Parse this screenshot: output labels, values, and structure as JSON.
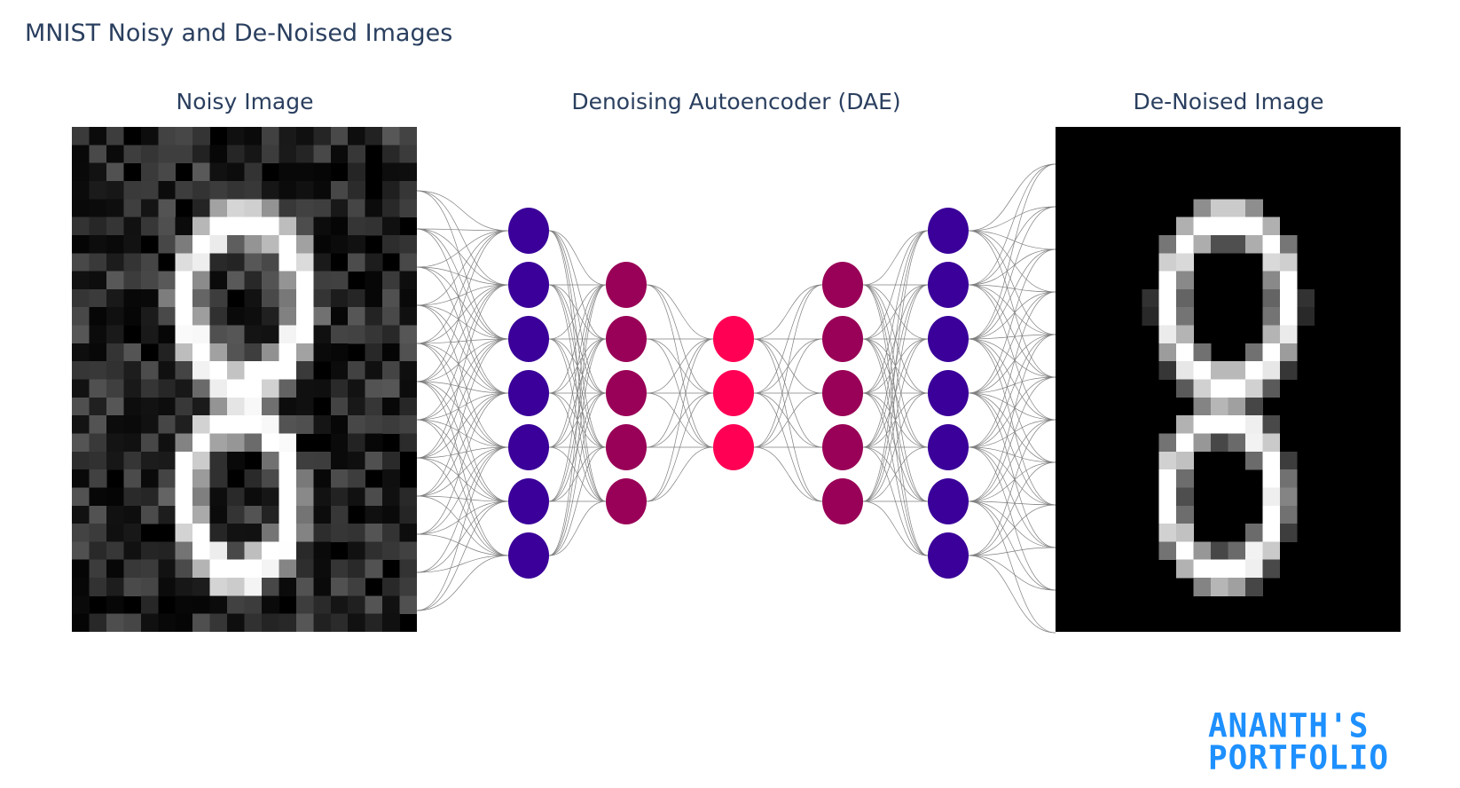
{
  "title": "MNIST Noisy and De-Noised Images",
  "panels": {
    "noisy_label": "Noisy Image",
    "network_label": "Denoising Autoencoder (DAE)",
    "denoised_label": "De-Noised Image"
  },
  "network": {
    "layers": [
      {
        "nodes": 7,
        "color": "#3a0099"
      },
      {
        "nodes": 5,
        "color": "#990057"
      },
      {
        "nodes": 3,
        "color": "#ff0055"
      },
      {
        "nodes": 5,
        "color": "#990057"
      },
      {
        "nodes": 7,
        "color": "#3a0099"
      }
    ],
    "edge_color": "#555555"
  },
  "colors": {
    "title": "#2a3f5f",
    "logo": "#1e90ff",
    "panel_bg": "#000000"
  },
  "logo": {
    "line1": "ANANTH'S",
    "line2": "PORTFOLIO"
  }
}
